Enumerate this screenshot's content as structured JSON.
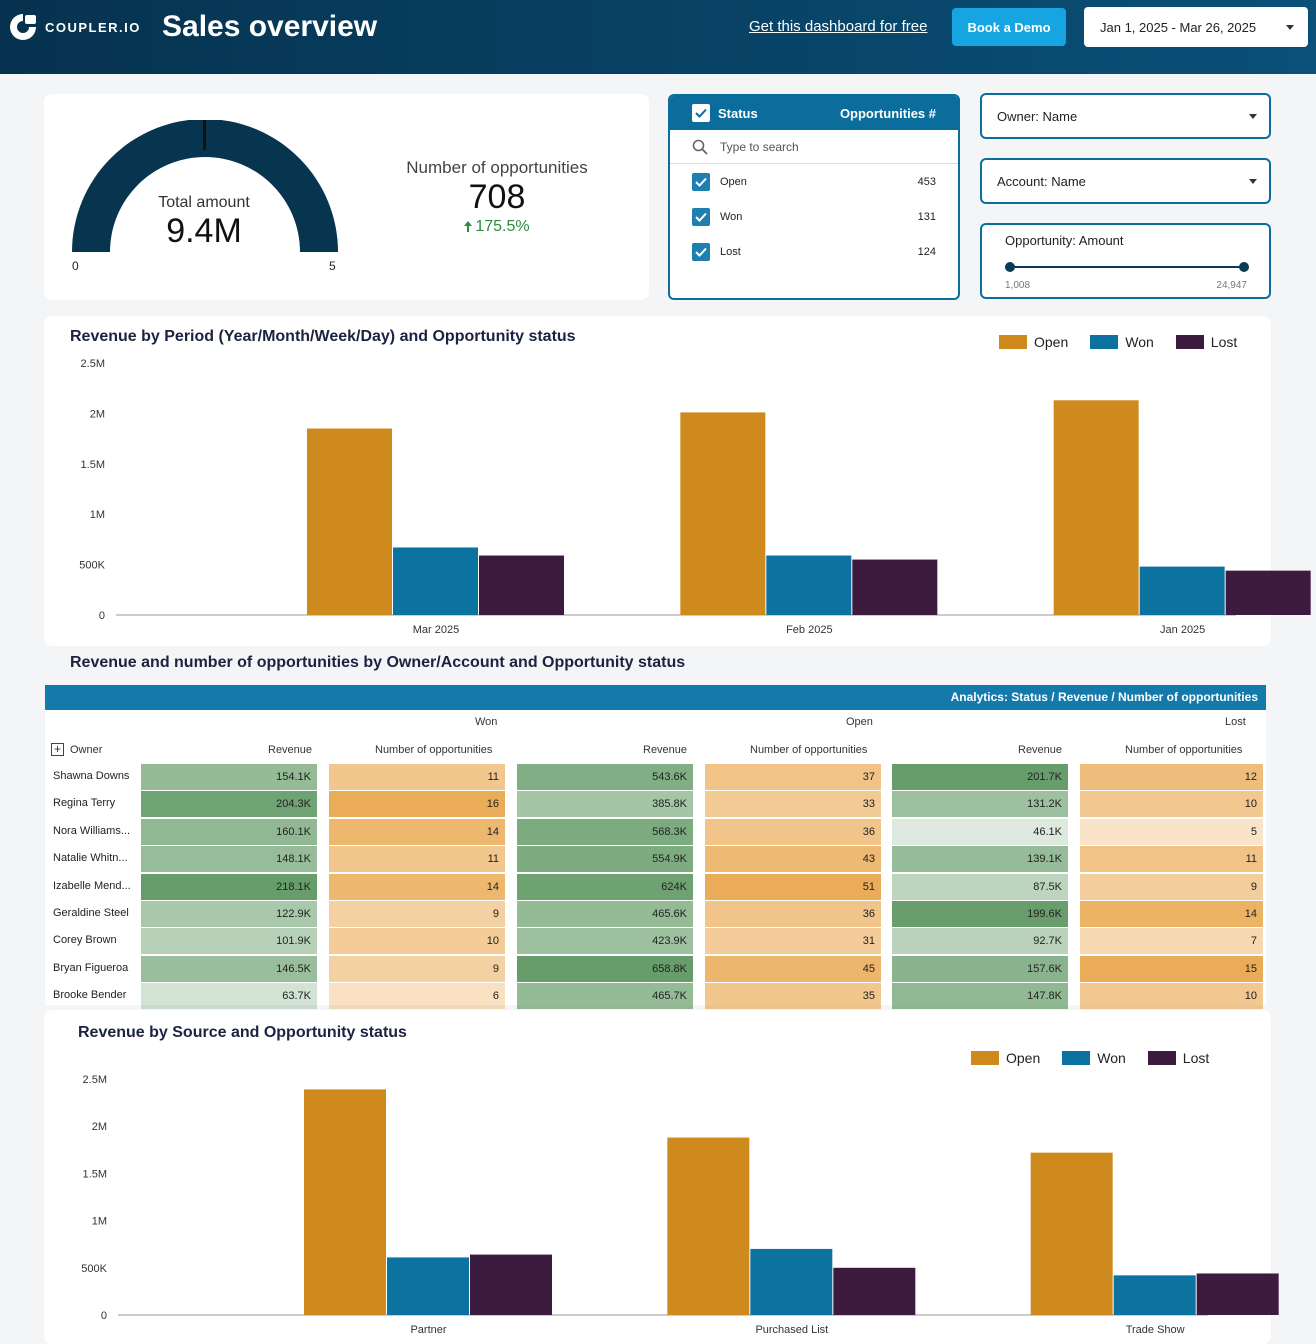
{
  "header": {
    "logo_text": "COUPLER.IO",
    "title": "Sales overview",
    "free_link": "Get this dashboard for free",
    "demo_button": "Book a Demo",
    "date_range": "Jan 1, 2025 - Mar 26, 2025"
  },
  "kpi": {
    "gauge_label": "Total amount",
    "gauge_value": "9.4M",
    "gauge_min": "0",
    "gauge_max": "5",
    "gauge_fill_fraction": 1.0,
    "opp_label": "Number of opportunities",
    "opp_value": "708",
    "opp_change": "175.5%"
  },
  "status_filter": {
    "header_label": "Status",
    "header_metric": "Opportunities #",
    "search_placeholder": "Type to search",
    "items": [
      {
        "label": "Open",
        "count": "453"
      },
      {
        "label": "Won",
        "count": "131"
      },
      {
        "label": "Lost",
        "count": "124"
      }
    ]
  },
  "filters": {
    "owner": "Owner: Name",
    "account": "Account: Name",
    "amount_label": "Opportunity: Amount",
    "amount_min": "1,008",
    "amount_max": "24,947"
  },
  "colors": {
    "open": "#cf8a1e",
    "won": "#0c72a0",
    "lost": "#3d1b3e"
  },
  "legend": {
    "open": "Open",
    "won": "Won",
    "lost": "Lost"
  },
  "chart_data": [
    {
      "type": "bar",
      "title": "Revenue by Period (Year/Month/Week/Day) and Opportunity status",
      "categories": [
        "Mar 2025",
        "Feb 2025",
        "Jan 2025"
      ],
      "series": [
        {
          "name": "Open",
          "values": [
            1850000,
            2010000,
            2130000
          ]
        },
        {
          "name": "Won",
          "values": [
            670000,
            590000,
            480000
          ]
        },
        {
          "name": "Lost",
          "values": [
            590000,
            550000,
            440000
          ]
        }
      ],
      "ylim": [
        0,
        2500000
      ],
      "yticks": [
        "0",
        "500K",
        "1M",
        "1.5M",
        "2M",
        "2.5M"
      ],
      "legend_position": "top-right"
    },
    {
      "type": "bar",
      "title": "Revenue by Source and Opportunity status",
      "categories": [
        "Partner",
        "Purchased List",
        "Trade Show"
      ],
      "series": [
        {
          "name": "Open",
          "values": [
            2390000,
            1880000,
            1720000
          ]
        },
        {
          "name": "Won",
          "values": [
            610000,
            700000,
            420000
          ]
        },
        {
          "name": "Lost",
          "values": [
            640000,
            500000,
            440000
          ]
        }
      ],
      "ylim": [
        0,
        2500000
      ],
      "yticks": [
        "0",
        "500K",
        "1M",
        "1.5M",
        "2M",
        "2.5M"
      ],
      "legend_position": "top-right"
    }
  ],
  "table": {
    "title": "Revenue and number of opportunities by Owner/Account and Opportunity status",
    "band_label": "Analytics: Status / Revenue / Number of opportunities",
    "groups": [
      "Won",
      "Open",
      "Lost"
    ],
    "owner_header": "Owner",
    "col_revenue": "Revenue",
    "col_count": "Number of opportunities",
    "rows": [
      {
        "owner": "Shawna Downs",
        "won_rev": "154.1K",
        "won_n": "11",
        "open_rev": "543.6K",
        "open_n": "37",
        "lost_rev": "201.7K",
        "lost_n": "12"
      },
      {
        "owner": "Regina Terry",
        "won_rev": "204.3K",
        "won_n": "16",
        "open_rev": "385.8K",
        "open_n": "33",
        "lost_rev": "131.2K",
        "lost_n": "10"
      },
      {
        "owner": "Nora Williams...",
        "won_rev": "160.1K",
        "won_n": "14",
        "open_rev": "568.3K",
        "open_n": "36",
        "lost_rev": "46.1K",
        "lost_n": "5"
      },
      {
        "owner": "Natalie Whitn...",
        "won_rev": "148.1K",
        "won_n": "11",
        "open_rev": "554.9K",
        "open_n": "43",
        "lost_rev": "139.1K",
        "lost_n": "11"
      },
      {
        "owner": "Izabelle Mend...",
        "won_rev": "218.1K",
        "won_n": "14",
        "open_rev": "624K",
        "open_n": "51",
        "lost_rev": "87.5K",
        "lost_n": "9"
      },
      {
        "owner": "Geraldine Steel",
        "won_rev": "122.9K",
        "won_n": "9",
        "open_rev": "465.6K",
        "open_n": "36",
        "lost_rev": "199.6K",
        "lost_n": "14"
      },
      {
        "owner": "Corey Brown",
        "won_rev": "101.9K",
        "won_n": "10",
        "open_rev": "423.9K",
        "open_n": "31",
        "lost_rev": "92.7K",
        "lost_n": "7"
      },
      {
        "owner": "Bryan Figueroa",
        "won_rev": "146.5K",
        "won_n": "9",
        "open_rev": "658.8K",
        "open_n": "45",
        "lost_rev": "157.6K",
        "lost_n": "15"
      },
      {
        "owner": "Brooke Bender",
        "won_rev": "63.7K",
        "won_n": "6",
        "open_rev": "465.7K",
        "open_n": "35",
        "lost_rev": "147.8K",
        "lost_n": "10"
      }
    ]
  }
}
